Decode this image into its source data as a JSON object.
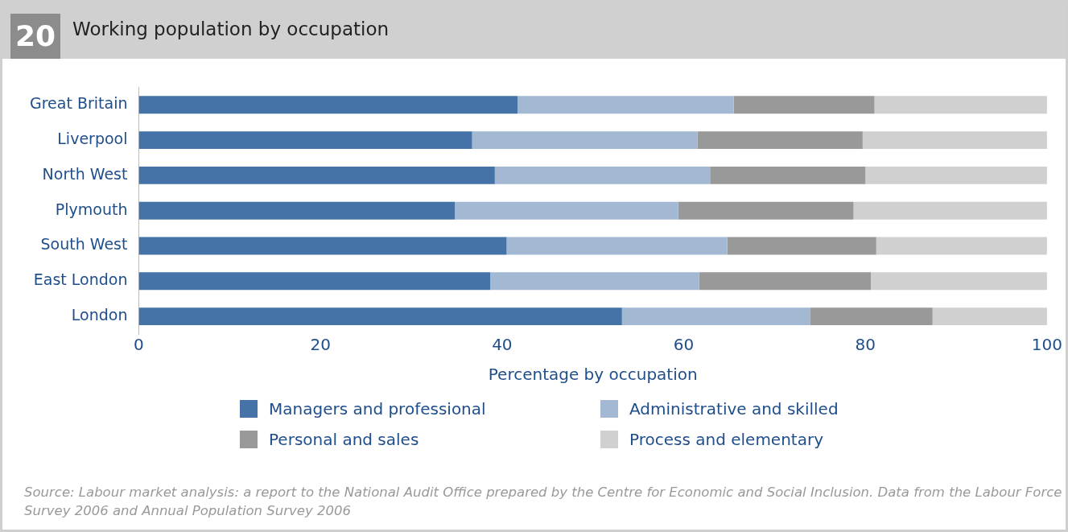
{
  "chart_data": {
    "type": "bar",
    "orientation": "horizontal",
    "stacked": true,
    "title": "Working population by occupation",
    "xlabel": "Percentage by occupation",
    "categories": [
      "Great Britain",
      "Liverpool",
      "North West",
      "Plymouth",
      "South West",
      "East London",
      "London"
    ],
    "series": [
      {
        "name": "Managers and professional",
        "color": "#4573a7",
        "values": [
          41.7,
          36.7,
          39.2,
          34.8,
          40.5,
          38.7,
          53.2
        ]
      },
      {
        "name": "Administrative and skilled",
        "color": "#a3b9d3",
        "values": [
          23.8,
          24.8,
          23.7,
          24.6,
          24.3,
          23.0,
          20.7
        ]
      },
      {
        "name": "Personal and sales",
        "color": "#999999",
        "values": [
          15.5,
          18.2,
          17.1,
          19.3,
          16.4,
          18.9,
          13.5
        ]
      },
      {
        "name": "Process and elementary",
        "color": "#d0d0d0",
        "values": [
          19.0,
          20.3,
          20.0,
          21.3,
          18.8,
          19.4,
          12.6
        ]
      }
    ],
    "xlim": [
      0,
      100
    ],
    "xticks": [
      0,
      20,
      40,
      60,
      80,
      100
    ],
    "grid": false,
    "legend": "bottom",
    "annotations": [
      "20",
      "Source: Labour market analysis: a report to the National Audit Office prepared by the Centre for Economic and Social Inclusion. Data from the Labour Force Survey 2006 and Annual Population Survey 2006"
    ]
  }
}
